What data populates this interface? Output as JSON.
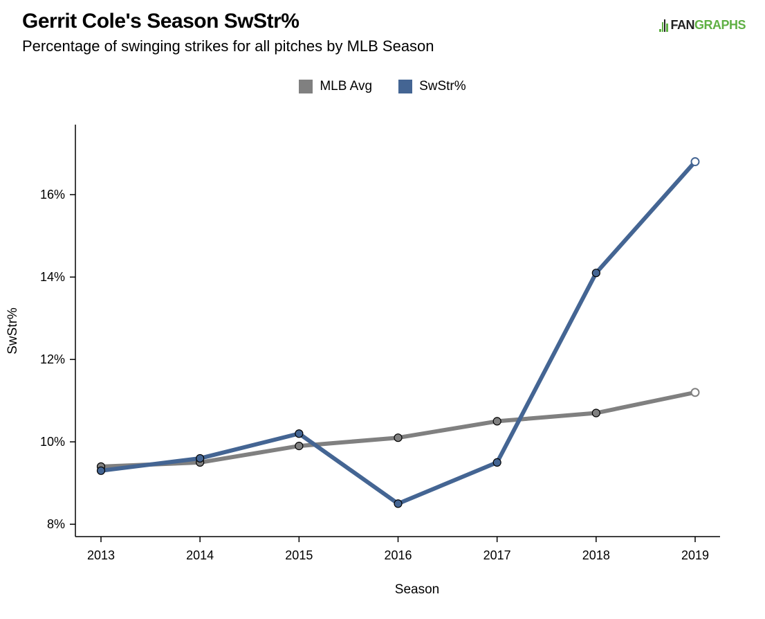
{
  "header": {
    "title": "Gerrit Cole's Season SwStr%",
    "subtitle": "Percentage of swinging strikes for all pitches by MLB Season",
    "logo_fan": "FAN",
    "logo_graphs": "GRAPHS",
    "logo_color": "#5fb044"
  },
  "chart_data": {
    "type": "line",
    "title": "Gerrit Cole's Season SwStr%",
    "subtitle": "Percentage of swinging strikes for all pitches by MLB Season",
    "xlabel": "Season",
    "ylabel": "SwStr%",
    "x": [
      "2013",
      "2014",
      "2015",
      "2016",
      "2017",
      "2018",
      "2019"
    ],
    "ylim": [
      7.7,
      17.7
    ],
    "yticks": [
      8,
      10,
      12,
      14,
      16
    ],
    "ytick_labels": [
      "8%",
      "10%",
      "12%",
      "14%",
      "16%"
    ],
    "grid": false,
    "legend_position": "top-center",
    "series": [
      {
        "name": "MLB Avg",
        "color": "#808080",
        "values": [
          9.4,
          9.5,
          9.9,
          10.1,
          10.5,
          10.7,
          11.2
        ]
      },
      {
        "name": "SwStr%",
        "color": "#446593",
        "values": [
          9.3,
          9.6,
          10.2,
          8.5,
          9.5,
          14.1,
          16.8
        ]
      }
    ]
  }
}
